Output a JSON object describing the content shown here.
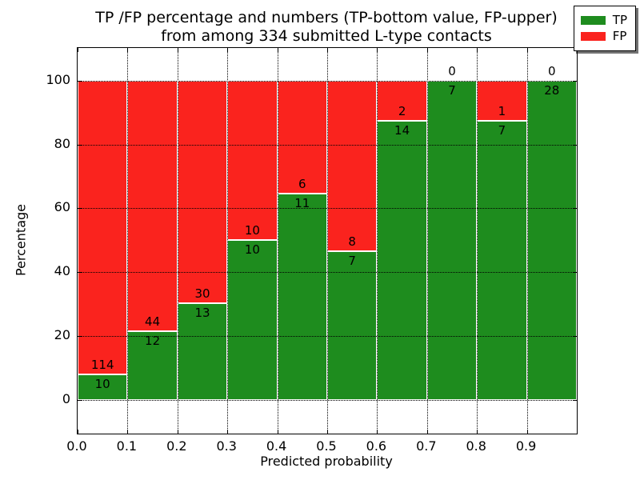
{
  "title_line1": "TP /FP percentage and numbers (TP-bottom value, FP-upper)",
  "title_line2": "from among 334 submitted L-type contacts",
  "axes": {
    "xlabel": "Predicted probability",
    "ylabel": "Percentage"
  },
  "chart_data": {
    "type": "bar",
    "stacked": true,
    "normalized_to_percent": 100,
    "title": "TP /FP percentage and numbers (TP-bottom value, FP-upper) from among 334 submitted L-type contacts",
    "xlabel": "Predicted probability",
    "ylabel": "Percentage",
    "total_contacts": 334,
    "bin_edges": [
      0.0,
      0.1,
      0.2,
      0.3,
      0.4,
      0.5,
      0.6,
      0.7,
      0.8,
      0.9,
      1.0
    ],
    "categories": [
      "0.0-0.1",
      "0.1-0.2",
      "0.2-0.3",
      "0.3-0.4",
      "0.4-0.5",
      "0.5-0.6",
      "0.6-0.7",
      "0.7-0.8",
      "0.8-0.9",
      "0.9-1.0"
    ],
    "series": [
      {
        "name": "TP",
        "color": "#1e8c1e",
        "values": [
          10,
          12,
          13,
          10,
          11,
          7,
          14,
          7,
          7,
          28
        ]
      },
      {
        "name": "FP",
        "color": "#fa231e",
        "values": [
          114,
          44,
          30,
          10,
          6,
          8,
          2,
          0,
          1,
          0
        ]
      }
    ],
    "tp_percent_of_bin": [
      8.1,
      21.4,
      30.2,
      50.0,
      64.7,
      46.7,
      87.5,
      100.0,
      87.5,
      100.0
    ],
    "xlim": [
      0.0,
      1.0
    ],
    "ylim": [
      -10.5,
      110.2
    ],
    "xticks": [
      "0.0",
      "0.1",
      "0.2",
      "0.3",
      "0.4",
      "0.5",
      "0.6",
      "0.7",
      "0.8",
      "0.9"
    ],
    "xtick_values": [
      0.0,
      0.1,
      0.2,
      0.3,
      0.4,
      0.5,
      0.6,
      0.7,
      0.8,
      0.9
    ],
    "yticks": [
      "0",
      "20",
      "40",
      "60",
      "80",
      "100"
    ],
    "ytick_values": [
      0,
      20,
      40,
      60,
      80,
      100
    ],
    "grid": "dotted",
    "bar_edge_color": "#ffffff",
    "legend_position": "upper right"
  },
  "legend": {
    "items": [
      {
        "label": "TP",
        "color": "#1e8c1e"
      },
      {
        "label": "FP",
        "color": "#fa231e"
      }
    ]
  }
}
